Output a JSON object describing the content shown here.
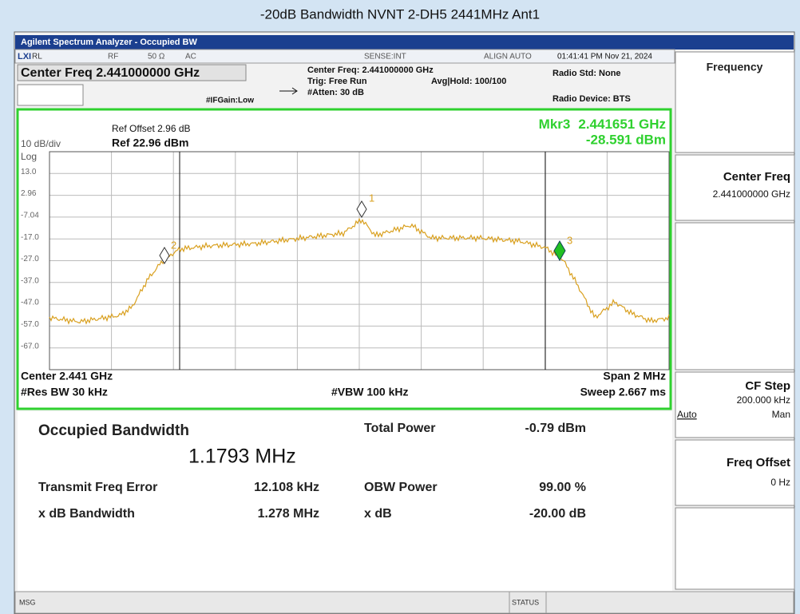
{
  "window_title": "-20dB Bandwidth NVNT 2-DH5 2441MHz Ant1",
  "app_title": "Agilent Spectrum Analyzer - Occupied BW",
  "status_bar": {
    "rl": "RL",
    "rf": "RF",
    "impedance": "50 Ω",
    "coupling": "AC",
    "sense": "SENSE:INT",
    "align": "ALIGN AUTO",
    "timestamp": "01:41:41 PM Nov 21, 2024"
  },
  "settings": {
    "center_freq": "Center Freq 2.441000000 GHz",
    "center_freq_info": "Center Freq: 2.441000000 GHz",
    "trig": "Trig: Free Run",
    "atten": "#Atten: 30 dB",
    "avg_hold": "Avg|Hold: 100/100",
    "ifgain": "#IFGain:Low",
    "radio_std": "Radio Std: None",
    "radio_device": "Radio Device: BTS"
  },
  "plot": {
    "ref_offset": "Ref Offset 2.96 dB",
    "scale": "10 dB/div",
    "ref_level": "Ref 22.96 dBm",
    "scale_type": "Log",
    "y_labels": [
      "13.0",
      "2.96",
      "-7.04",
      "-17.0",
      "-27.0",
      "-37.0",
      "-47.0",
      "-57.0",
      "-67.0"
    ],
    "marker_readout": {
      "name": "Mkr3",
      "freq": "2.441651 GHz",
      "level": "-28.591 dBm"
    },
    "markers": [
      "1",
      "2",
      "3"
    ],
    "center": "Center 2.441 GHz",
    "res_bw": "#Res BW 30 kHz",
    "vbw": "#VBW 100 kHz",
    "span": "Span 2 MHz",
    "sweep": "Sweep 2.667 ms"
  },
  "results": {
    "obw_label": "Occupied Bandwidth",
    "obw_value": "1.1793 MHz",
    "freq_error_label": "Transmit Freq Error",
    "freq_error_value": "12.108 kHz",
    "xdb_bw_label": "x dB Bandwidth",
    "xdb_bw_value": "1.278 MHz",
    "total_power_label": "Total Power",
    "total_power_value": "-0.79 dBm",
    "obw_power_label": "OBW Power",
    "obw_power_value": "99.00 %",
    "xdb_label": "x dB",
    "xdb_value": "-20.00 dB"
  },
  "softkeys": {
    "menu": "Frequency",
    "center_freq": {
      "label": "Center Freq",
      "value": "2.441000000 GHz"
    },
    "cf_step": {
      "label": "CF Step",
      "value": "200.000 kHz",
      "auto": "Auto",
      "man": "Man"
    },
    "freq_offset": {
      "label": "Freq Offset",
      "value": "0 Hz"
    }
  },
  "footer": {
    "msg": "MSG",
    "status": "STATUS"
  }
}
